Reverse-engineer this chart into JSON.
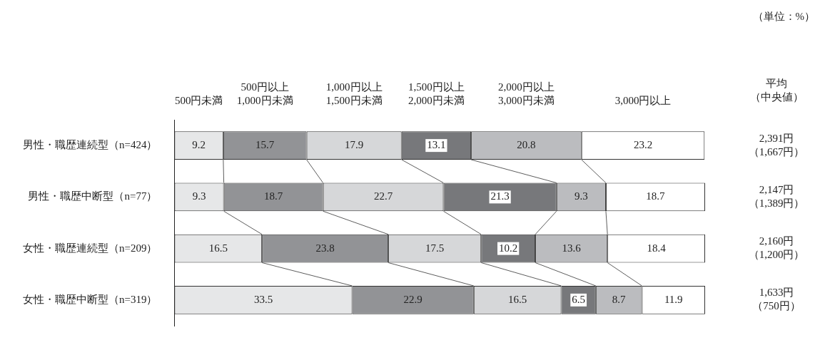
{
  "chart_data": {
    "type": "bar",
    "orientation": "horizontal",
    "stacked": true,
    "data_labels": true,
    "legend": "top",
    "tick_labels": "y",
    "categories": [
      "男性・職歴連続型（n=424）",
      "男性・職歴中断型（n=77）",
      "女性・職歴連続型（n=209）",
      "女性・職歴中断型（n=319）"
    ],
    "series": [
      {
        "name": "500円未満",
        "color": "#e6e7e8",
        "values": [
          9.2,
          9.3,
          16.5,
          33.5
        ]
      },
      {
        "name": "500円以上\n1,000円未満",
        "color": "#929396",
        "values": [
          15.7,
          18.7,
          23.8,
          22.9
        ]
      },
      {
        "name": "1,000円以上\n1,500円未満",
        "color": "#d6d7d9",
        "values": [
          17.9,
          22.7,
          17.5,
          16.5
        ]
      },
      {
        "name": "1,500円以上\n2,000円未満",
        "color": "#77787b",
        "values": [
          13.1,
          21.3,
          10.2,
          6.5
        ]
      },
      {
        "name": "2,000円以上\n3,000円未満",
        "color": "#bbbcbf",
        "values": [
          20.8,
          9.3,
          13.6,
          8.7
        ]
      },
      {
        "name": "3,000円以上",
        "color": "#ffffff",
        "values": [
          23.2,
          18.7,
          18.4,
          11.9
        ]
      }
    ],
    "annotations": [
      "（単位：%）",
      "平均",
      "（中央値）",
      "2,391円",
      "（1,667円）",
      "2,147円",
      "（1,389円）",
      "2,160円",
      "（1,200円）",
      "1,633円",
      "（750円）"
    ]
  }
}
